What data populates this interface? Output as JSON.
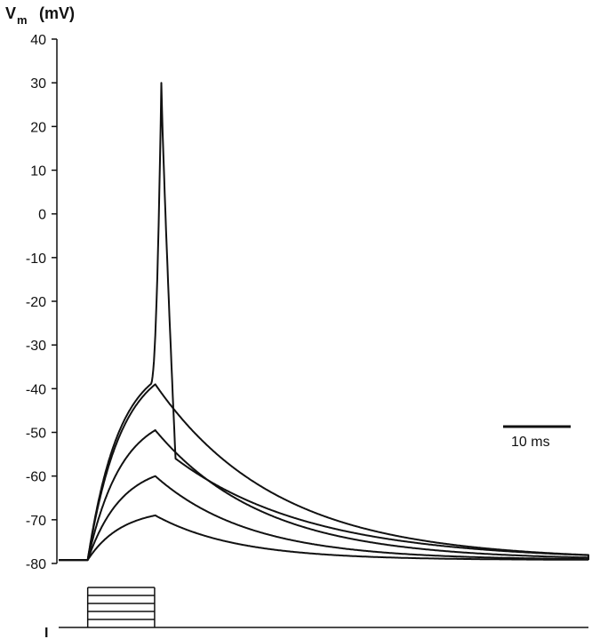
{
  "chart_data": {
    "type": "line",
    "ylabel": {
      "main": "V",
      "sub": "m",
      "units": "(mV)"
    },
    "ylim": [
      -80,
      40
    ],
    "y_ticks": [
      "40",
      "30",
      "20",
      "10",
      "0",
      "-10",
      "-20",
      "-30",
      "-40",
      "-50",
      "-60",
      "-70",
      "-80"
    ],
    "grid": false,
    "scale_bar": {
      "label": "10 ms",
      "duration_ms": 10
    },
    "current_label": "I",
    "time_range_ms": [
      0,
      111
    ],
    "stimulus": {
      "onset_ms": 4.3,
      "offset_ms": 14.2,
      "steps": 5
    },
    "series": [
      {
        "peak_time_ms": 14.3,
        "peak_mv": -69,
        "tau_ms": 12
      },
      {
        "peak_time_ms": 14.3,
        "peak_mv": -60,
        "tau_ms": 14
      },
      {
        "peak_time_ms": 14.3,
        "peak_mv": -49.5,
        "tau_ms": 16
      },
      {
        "peak_time_ms": 14.3,
        "peak_mv": -39,
        "tau_ms": 18
      },
      {
        "peak_time_ms": 15.2,
        "peak_mv": 30,
        "tau_ms": 20,
        "spike": true
      }
    ],
    "rest_mv": -79.2
  }
}
